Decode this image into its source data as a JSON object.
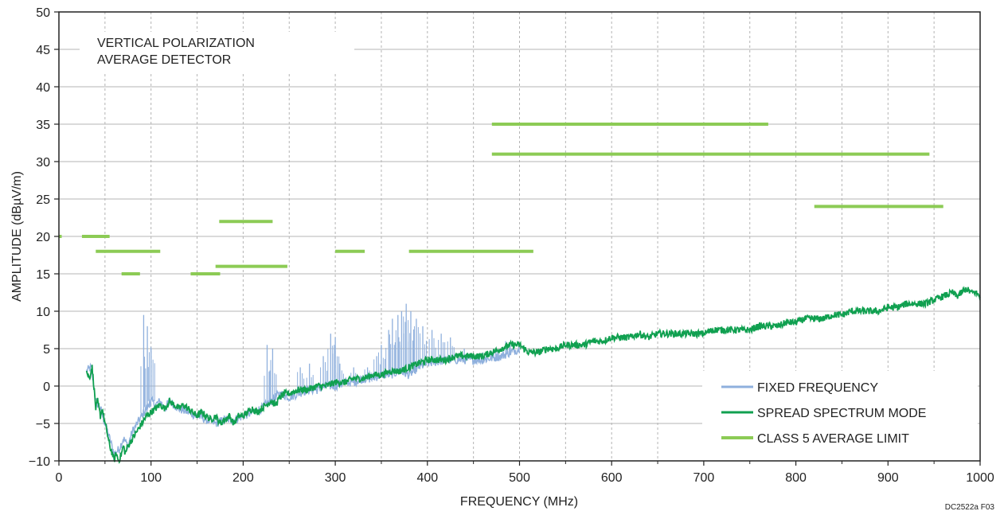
{
  "figure_code": "DC2522a F03",
  "chart_data": {
    "type": "line",
    "xlabel": "FREQUENCY (MHz)",
    "ylabel": "AMPLITUDE (dBµV/m)",
    "xlim": [
      0,
      1000
    ],
    "ylim": [
      -10,
      50
    ],
    "x_ticks": [
      0,
      100,
      200,
      300,
      400,
      500,
      600,
      700,
      800,
      900,
      1000
    ],
    "y_ticks": [
      -10,
      -5,
      0,
      5,
      10,
      15,
      20,
      25,
      30,
      35,
      40,
      45,
      50
    ],
    "x_tick_labels": [
      "0",
      "100",
      "200",
      "300",
      "400",
      "500",
      "600",
      "700",
      "800",
      "900",
      "1000"
    ],
    "y_tick_labels": [
      "−10",
      "−5",
      "0",
      "5",
      "10",
      "15",
      "20",
      "25",
      "30",
      "35",
      "40",
      "45",
      "50"
    ],
    "grid": "vertical dashed every 50 MHz, horizontal solid every 5 dB",
    "annotation_lines": [
      "VERTICAL POLARIZATION",
      "AVERAGE DETECTOR"
    ],
    "legend_position": "bottom-right",
    "colors": {
      "fixed_frequency": "#8fb0dd",
      "spread_spectrum": "#10a050",
      "limit": "#8ccb55",
      "grid": "#b4b4b4",
      "axis": "#222222"
    },
    "series": [
      {
        "name": "FIXED FREQUENCY",
        "style": "thin spiky line",
        "points": [
          [
            30,
            2
          ],
          [
            35,
            2.5
          ],
          [
            40,
            -2
          ],
          [
            45,
            -3
          ],
          [
            50,
            -5
          ],
          [
            55,
            -7
          ],
          [
            60,
            -9
          ],
          [
            65,
            -8.5
          ],
          [
            70,
            -7
          ],
          [
            75,
            -8
          ],
          [
            80,
            -6
          ],
          [
            85,
            -5
          ],
          [
            90,
            -4
          ],
          [
            95,
            -3
          ],
          [
            100,
            -2
          ],
          [
            105,
            -2.5
          ],
          [
            110,
            -2
          ],
          [
            115,
            -3
          ],
          [
            120,
            -2
          ],
          [
            130,
            -3
          ],
          [
            140,
            -3.5
          ],
          [
            150,
            -4
          ],
          [
            160,
            -4.5
          ],
          [
            170,
            -5
          ],
          [
            180,
            -4.5
          ],
          [
            190,
            -4.5
          ],
          [
            200,
            -4
          ],
          [
            210,
            -3.5
          ],
          [
            220,
            -3
          ],
          [
            230,
            -2
          ],
          [
            240,
            -1
          ],
          [
            250,
            -1.5
          ],
          [
            260,
            -1
          ],
          [
            270,
            -0.5
          ],
          [
            280,
            -0.5
          ],
          [
            290,
            0
          ],
          [
            300,
            0
          ],
          [
            310,
            0.5
          ],
          [
            320,
            0.5
          ],
          [
            330,
            1
          ],
          [
            340,
            1
          ],
          [
            350,
            1.5
          ],
          [
            360,
            1.5
          ],
          [
            370,
            2
          ],
          [
            380,
            1.5
          ],
          [
            390,
            2.5
          ],
          [
            400,
            3
          ],
          [
            420,
            3.5
          ],
          [
            440,
            3.5
          ],
          [
            460,
            3.5
          ],
          [
            480,
            4
          ],
          [
            500,
            5
          ]
        ],
        "spikes": [
          [
            92,
            9.5
          ],
          [
            96,
            8
          ],
          [
            100,
            5
          ],
          [
            226,
            5.5
          ],
          [
            232,
            5
          ],
          [
            262,
            2.5
          ],
          [
            272,
            3
          ],
          [
            287,
            4
          ],
          [
            295,
            7
          ],
          [
            300,
            6.5
          ],
          [
            305,
            3
          ],
          [
            320,
            2.5
          ],
          [
            335,
            2.5
          ],
          [
            345,
            4
          ],
          [
            350,
            5.5
          ],
          [
            358,
            7.5
          ],
          [
            362,
            9
          ],
          [
            368,
            9.5
          ],
          [
            372,
            10
          ],
          [
            377,
            11
          ],
          [
            382,
            10
          ],
          [
            388,
            9
          ],
          [
            395,
            8
          ],
          [
            405,
            7.5
          ],
          [
            415,
            7
          ],
          [
            425,
            6.5
          ],
          [
            440,
            5
          ],
          [
            460,
            4.5
          ],
          [
            472,
            5
          ],
          [
            485,
            6
          ],
          [
            490,
            5.5
          ]
        ]
      },
      {
        "name": "SPREAD SPECTRUM MODE",
        "style": "noisy line",
        "points": [
          [
            30,
            2
          ],
          [
            33,
            1
          ],
          [
            36,
            2.5
          ],
          [
            38,
            0
          ],
          [
            40,
            -3
          ],
          [
            42,
            -2
          ],
          [
            45,
            -4
          ],
          [
            47,
            -3
          ],
          [
            50,
            -5
          ],
          [
            52,
            -6
          ],
          [
            55,
            -8
          ],
          [
            58,
            -9
          ],
          [
            60,
            -10
          ],
          [
            62,
            -9
          ],
          [
            65,
            -10
          ],
          [
            68,
            -9
          ],
          [
            70,
            -8
          ],
          [
            72,
            -9
          ],
          [
            75,
            -8
          ],
          [
            80,
            -7
          ],
          [
            85,
            -6
          ],
          [
            90,
            -5
          ],
          [
            95,
            -4
          ],
          [
            100,
            -3.5
          ],
          [
            105,
            -3
          ],
          [
            110,
            -2.5
          ],
          [
            115,
            -3
          ],
          [
            120,
            -2
          ],
          [
            125,
            -2.5
          ],
          [
            130,
            -3
          ],
          [
            135,
            -2.5
          ],
          [
            140,
            -3
          ],
          [
            145,
            -3.5
          ],
          [
            150,
            -4
          ],
          [
            155,
            -3.5
          ],
          [
            160,
            -4
          ],
          [
            165,
            -4.5
          ],
          [
            170,
            -4
          ],
          [
            175,
            -5
          ],
          [
            180,
            -4.5
          ],
          [
            185,
            -4
          ],
          [
            190,
            -5
          ],
          [
            195,
            -4
          ],
          [
            200,
            -4
          ],
          [
            205,
            -3.5
          ],
          [
            210,
            -3
          ],
          [
            215,
            -3.5
          ],
          [
            220,
            -3
          ],
          [
            225,
            -2.5
          ],
          [
            230,
            -2
          ],
          [
            235,
            -2.5
          ],
          [
            240,
            -1.5
          ],
          [
            245,
            -1
          ],
          [
            250,
            -1
          ],
          [
            260,
            -0.5
          ],
          [
            270,
            -0.5
          ],
          [
            280,
            0
          ],
          [
            290,
            0
          ],
          [
            300,
            0.5
          ],
          [
            310,
            0.5
          ],
          [
            320,
            1
          ],
          [
            330,
            1
          ],
          [
            340,
            1.5
          ],
          [
            350,
            1.5
          ],
          [
            360,
            2
          ],
          [
            370,
            2
          ],
          [
            380,
            2.5
          ],
          [
            390,
            3
          ],
          [
            400,
            3.5
          ],
          [
            410,
            3.5
          ],
          [
            420,
            3.5
          ],
          [
            430,
            4
          ],
          [
            440,
            4
          ],
          [
            450,
            4
          ],
          [
            460,
            4
          ],
          [
            470,
            4.5
          ],
          [
            480,
            5
          ],
          [
            490,
            5.5
          ],
          [
            500,
            5.5
          ],
          [
            510,
            4.5
          ],
          [
            520,
            4.5
          ],
          [
            530,
            5
          ],
          [
            540,
            5
          ],
          [
            550,
            5.5
          ],
          [
            560,
            5.5
          ],
          [
            570,
            5.5
          ],
          [
            580,
            6
          ],
          [
            590,
            6
          ],
          [
            600,
            6.5
          ],
          [
            610,
            6.5
          ],
          [
            620,
            6.5
          ],
          [
            630,
            7
          ],
          [
            640,
            6.5
          ],
          [
            650,
            7
          ],
          [
            660,
            7
          ],
          [
            670,
            7
          ],
          [
            680,
            7
          ],
          [
            690,
            7
          ],
          [
            700,
            7
          ],
          [
            710,
            7.5
          ],
          [
            720,
            7.5
          ],
          [
            730,
            7.5
          ],
          [
            740,
            7.5
          ],
          [
            750,
            7.5
          ],
          [
            760,
            8
          ],
          [
            770,
            8
          ],
          [
            780,
            8
          ],
          [
            790,
            8.5
          ],
          [
            800,
            8.5
          ],
          [
            810,
            9
          ],
          [
            820,
            9
          ],
          [
            830,
            9
          ],
          [
            840,
            9.5
          ],
          [
            850,
            9.5
          ],
          [
            860,
            10
          ],
          [
            870,
            10
          ],
          [
            880,
            10
          ],
          [
            890,
            10
          ],
          [
            900,
            10.5
          ],
          [
            910,
            10.5
          ],
          [
            920,
            11
          ],
          [
            930,
            11
          ],
          [
            940,
            11
          ],
          [
            950,
            11.5
          ],
          [
            960,
            12
          ],
          [
            970,
            12.5
          ],
          [
            975,
            12
          ],
          [
            980,
            12.5
          ],
          [
            985,
            13
          ],
          [
            990,
            12.5
          ],
          [
            995,
            12.5
          ],
          [
            1000,
            12
          ]
        ]
      },
      {
        "name": "CLASS 5 AVERAGE LIMIT",
        "style": "horizontal segments",
        "segments": [
          [
            0,
            3,
            20
          ],
          [
            25,
            55,
            20
          ],
          [
            40,
            110,
            18
          ],
          [
            68,
            88,
            15
          ],
          [
            143,
            175,
            15
          ],
          [
            170,
            248,
            16
          ],
          [
            174,
            232,
            22
          ],
          [
            300,
            332,
            18
          ],
          [
            380,
            515,
            18
          ],
          [
            470,
            770,
            35
          ],
          [
            470,
            945,
            31
          ],
          [
            820,
            960,
            24
          ]
        ]
      }
    ]
  }
}
